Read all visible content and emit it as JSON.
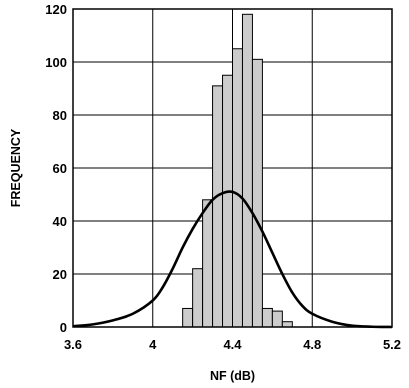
{
  "chart_data": {
    "type": "bar",
    "xlabel": "NF (dB)",
    "ylabel": "FREQUENCY",
    "xlim": [
      3.6,
      5.2
    ],
    "ylim": [
      0,
      120
    ],
    "x_ticks": [
      "3.6",
      "4",
      "4.4",
      "4.8",
      "5.2"
    ],
    "y_ticks": [
      "0",
      "20",
      "40",
      "60",
      "80",
      "100",
      "120"
    ],
    "grid": true,
    "legend": "none",
    "bar_width": 0.05,
    "bar_color": "#cccccc",
    "histogram": {
      "bin_left_edges": [
        4.15,
        4.2,
        4.25,
        4.3,
        4.35,
        4.4,
        4.45,
        4.5,
        4.55,
        4.6
      ],
      "values": [
        7,
        22,
        48,
        91,
        95,
        105,
        118,
        101,
        7,
        6
      ]
    },
    "extra_bars": [
      {
        "x": 4.65,
        "value": 2
      }
    ],
    "curve": {
      "color": "#000000",
      "x": [
        3.6,
        3.7,
        3.8,
        3.9,
        4.0,
        4.05,
        4.1,
        4.15,
        4.2,
        4.25,
        4.3,
        4.35,
        4.4,
        4.45,
        4.5,
        4.55,
        4.6,
        4.65,
        4.7,
        4.75,
        4.8,
        4.9,
        5.0,
        5.1,
        5.2
      ],
      "y": [
        0.3,
        1,
        2.5,
        5,
        10,
        15,
        22,
        30,
        37,
        43,
        48,
        50.5,
        51,
        48.5,
        43,
        36,
        28,
        20,
        13,
        8,
        5,
        2,
        0.5,
        0.1,
        0
      ]
    }
  }
}
